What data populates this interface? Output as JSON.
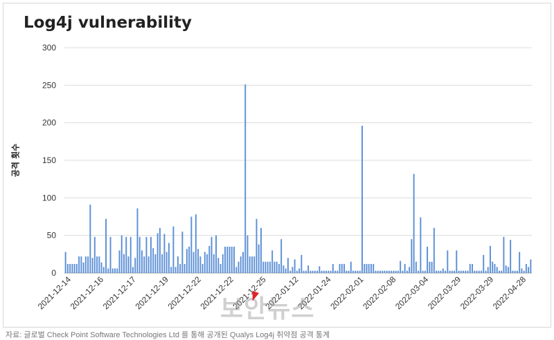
{
  "chart_data": {
    "type": "bar",
    "title": "Log4j vulnerability",
    "ylabel": "공격 횟수",
    "xlabel": "",
    "ylim": [
      0,
      300
    ],
    "yticks": [
      0,
      50,
      100,
      150,
      200,
      250,
      300
    ],
    "grid": true,
    "bar_color": "#5b8fd6",
    "xtick_labels": [
      "2021-12-14",
      "2021-12-16",
      "2021-12-17",
      "2021-12-19",
      "2021-12-22",
      "2021-12-22",
      "2021-12-25",
      "2022-01-12",
      "2022-01-24",
      "2022-02-01",
      "2022-02-08",
      "2022-03-04",
      "2022-03-29",
      "2022-03-29",
      "2022-04-28"
    ],
    "values": [
      28,
      12,
      12,
      12,
      12,
      12,
      22,
      22,
      14,
      22,
      22,
      91,
      20,
      48,
      22,
      22,
      14,
      8,
      72,
      6,
      48,
      6,
      6,
      6,
      30,
      50,
      25,
      48,
      22,
      48,
      8,
      20,
      86,
      48,
      30,
      22,
      48,
      22,
      48,
      33,
      25,
      53,
      60,
      25,
      52,
      28,
      40,
      8,
      62,
      8,
      22,
      12,
      55,
      12,
      32,
      35,
      75,
      28,
      78,
      32,
      22,
      12,
      28,
      25,
      36,
      48,
      25,
      50,
      20,
      12,
      25,
      35,
      35,
      35,
      35,
      35,
      8,
      15,
      22,
      28,
      251,
      50,
      22,
      22,
      22,
      72,
      38,
      60,
      15,
      15,
      15,
      15,
      30,
      15,
      15,
      12,
      45,
      10,
      6,
      20,
      3,
      8,
      18,
      3,
      6,
      24,
      3,
      3,
      10,
      3,
      3,
      3,
      3,
      9,
      3,
      3,
      3,
      3,
      3,
      12,
      3,
      3,
      12,
      12,
      12,
      3,
      3,
      15,
      3,
      3,
      3,
      3,
      196,
      12,
      12,
      12,
      12,
      12,
      3,
      3,
      3,
      3,
      3,
      3,
      3,
      3,
      3,
      3,
      3,
      16,
      3,
      12,
      3,
      8,
      45,
      132,
      15,
      3,
      74,
      3,
      3,
      35,
      15,
      15,
      60,
      3,
      3,
      3,
      6,
      3,
      30,
      3,
      3,
      3,
      30,
      3,
      3,
      3,
      3,
      3,
      12,
      12,
      3,
      3,
      3,
      3,
      24,
      3,
      8,
      36,
      15,
      12,
      8,
      3,
      3,
      48,
      10,
      8,
      44,
      3,
      3,
      3,
      28,
      6,
      3,
      12,
      8,
      18
    ]
  },
  "watermark": "보안뉴스",
  "caption": "자료: 글로벌 Check Point Software Technologies Ltd 를 통해 공개된 Qualys Log4j 취약점 공격 통계"
}
